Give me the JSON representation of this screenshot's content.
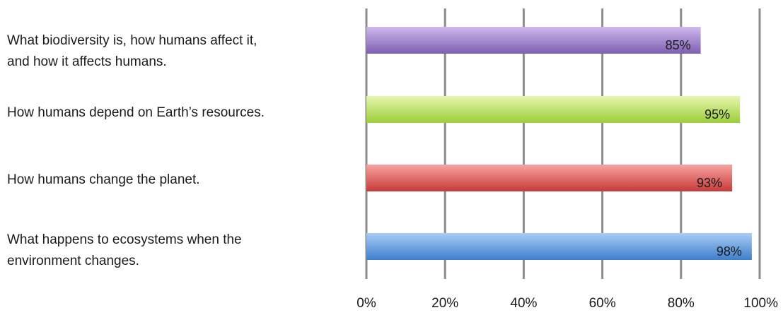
{
  "chart_data": {
    "type": "bar",
    "orientation": "horizontal",
    "categories": [
      [
        "What biodiversity is, how humans affect it,",
        "and how it affects humans."
      ],
      [
        "How humans depend on Earth’s resources."
      ],
      [
        "How humans change the planet."
      ],
      [
        "What happens to ecosystems when the",
        "environment changes."
      ]
    ],
    "values": [
      85,
      95,
      93,
      98
    ],
    "data_labels": [
      "85%",
      "95%",
      "93%",
      "98%"
    ],
    "xlim": [
      0,
      100
    ],
    "x_ticks": [
      "0%",
      "20%",
      "40%",
      "60%",
      "80%",
      "100%"
    ],
    "grid": "vertical",
    "colors": [
      {
        "top": "#cdb9ec",
        "bottom": "#7d5fb0"
      },
      {
        "top": "#e6f7ae",
        "bottom": "#9ccd3a"
      },
      {
        "top": "#f8a3a1",
        "bottom": "#c73a38"
      },
      {
        "top": "#a8ccf4",
        "bottom": "#3f7fce"
      }
    ],
    "grid_color": "#8c8c8c"
  }
}
